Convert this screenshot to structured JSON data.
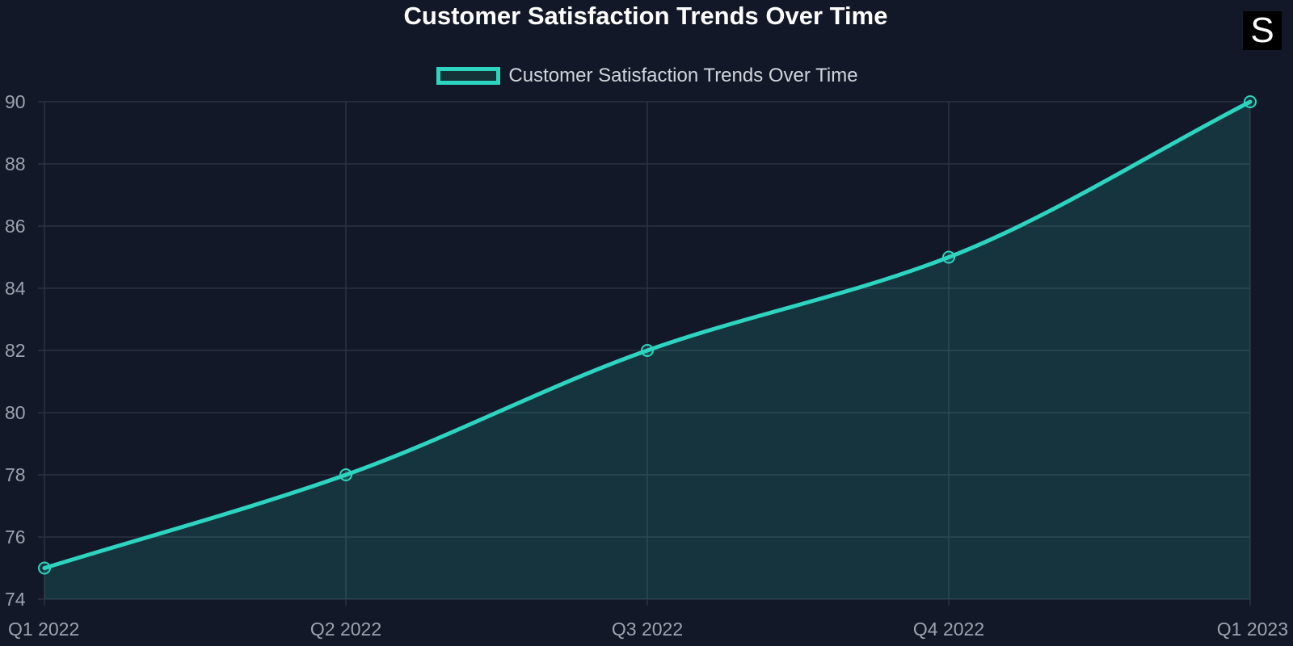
{
  "chart_data": {
    "type": "area",
    "title": "Customer Satisfaction Trends Over Time",
    "categories": [
      "Q1 2022",
      "Q2 2022",
      "Q3 2022",
      "Q4 2022",
      "Q1 2023"
    ],
    "series": [
      {
        "name": "Customer Satisfaction Trends Over Time",
        "values": [
          75,
          78,
          82,
          85,
          90
        ],
        "color": "#2dd4bf",
        "fill": "rgba(45, 212, 191, 0.15)"
      }
    ],
    "ylim": [
      74,
      90
    ],
    "yticks": [
      "74",
      "76",
      "78",
      "80",
      "82",
      "84",
      "86",
      "88",
      "90"
    ],
    "grid": true,
    "legend_position": "top-center",
    "smooth": true
  },
  "brand": {
    "letter": "S"
  },
  "colors": {
    "background": "#121827",
    "grid": "#2a3342",
    "tick_text": "#9ca3af",
    "title": "#ffffff",
    "legend_text": "#d1d5db"
  }
}
